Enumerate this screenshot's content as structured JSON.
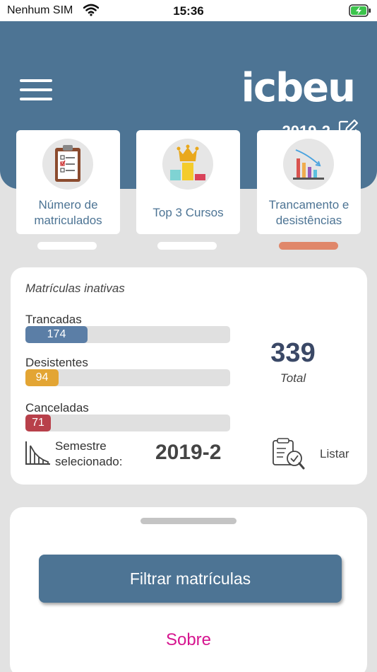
{
  "status_bar": {
    "carrier": "Nenhum SIM",
    "time": "15:36"
  },
  "header": {
    "logo": "icbeu",
    "semester": "2019-2"
  },
  "cards": [
    {
      "label": "Número de matriculados"
    },
    {
      "label": "Top 3 Cursos"
    },
    {
      "label": "Trancamento e desistências"
    }
  ],
  "panel": {
    "title": "Matrículas inativas",
    "bars": [
      {
        "label": "Trancadas",
        "value": "174",
        "color": "#5b7ea6"
      },
      {
        "label": "Desistentes",
        "value": "94",
        "color": "#e3a534"
      },
      {
        "label": "Canceladas",
        "value": "71",
        "color": "#b8404a"
      }
    ],
    "total_value": "339",
    "total_label": "Total",
    "semester_label_1": "Semestre",
    "semester_label_2": "selecionado:",
    "semester_value": "2019-2",
    "list_label": "Listar"
  },
  "sheet": {
    "filter_label": "Filtrar matrículas",
    "about_label": "Sobre"
  },
  "colors": {
    "primary": "#4d7494",
    "accent": "#e0876a",
    "link": "#d6158f",
    "total": "#3a4866"
  }
}
